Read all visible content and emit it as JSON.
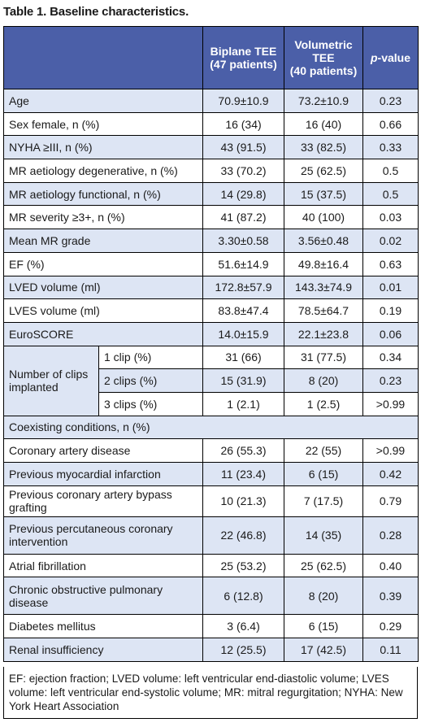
{
  "title": "Table 1. Baseline characteristics.",
  "headers": {
    "col1": "Biplane TEE\n(47 patients)",
    "col2": "Volumetric\nTEE\n(40 patients)",
    "pvalue_prefix": "p",
    "pvalue_suffix": "-value"
  },
  "rows": [
    {
      "label": "Age",
      "a": "70.9±10.9",
      "b": "73.2±10.9",
      "p": "0.23"
    },
    {
      "label": "Sex female, n (%)",
      "a": "16 (34)",
      "b": "16 (40)",
      "p": "0.66"
    },
    {
      "label": "NYHA ≥III, n (%)",
      "a": "43 (91.5)",
      "b": "33 (82.5)",
      "p": "0.33"
    },
    {
      "label": "MR aetiology degenerative, n (%)",
      "a": "33 (70.2)",
      "b": "25 (62.5)",
      "p": "0.5"
    },
    {
      "label": "MR aetiology functional, n (%)",
      "a": "14 (29.8)",
      "b": "15 (37.5)",
      "p": "0.5"
    },
    {
      "label": "MR severity ≥3+, n (%)",
      "a": "41 (87.2)",
      "b": "40 (100)",
      "p": "0.03"
    },
    {
      "label": "Mean MR grade",
      "a": "3.30±0.58",
      "b": "3.56±0.48",
      "p": "0.02"
    },
    {
      "label": "EF (%)",
      "a": "51.6±14.9",
      "b": "49.8±16.4",
      "p": "0.63"
    },
    {
      "label": "LVED volume (ml)",
      "a": "172.8±57.9",
      "b": "143.3±74.9",
      "p": "0.01"
    },
    {
      "label": "LVES volume (ml)",
      "a": "83.8±47.4",
      "b": "78.5±64.7",
      "p": "0.19"
    },
    {
      "label": "EuroSCORE",
      "a": "14.0±15.9",
      "b": "22.1±23.8",
      "p": "0.06"
    }
  ],
  "clips": {
    "group_label": "Number of clips implanted",
    "rows": [
      {
        "label": "1 clip (%)",
        "a": "31 (66)",
        "b": "31 (77.5)",
        "p": "0.34"
      },
      {
        "label": "2 clips (%)",
        "a": "15 (31.9)",
        "b": "8 (20)",
        "p": "0.23"
      },
      {
        "label": "3 clips (%)",
        "a": "1 (2.1)",
        "b": "1 (2.5)",
        "p": ">0.99"
      }
    ]
  },
  "coexisting_header": "Coexisting conditions, n (%)",
  "conditions": [
    {
      "label": "Coronary artery disease",
      "a": "26 (55.3)",
      "b": "22 (55)",
      "p": ">0.99"
    },
    {
      "label": "Previous myocardial infarction",
      "a": "11 (23.4)",
      "b": "6 (15)",
      "p": "0.42"
    },
    {
      "label": "Previous coronary artery bypass grafting",
      "a": "10 (21.3)",
      "b": "7 (17.5)",
      "p": "0.79"
    },
    {
      "label": "Previous percutaneous coronary intervention",
      "a": "22 (46.8)",
      "b": "14 (35)",
      "p": "0.28"
    },
    {
      "label": "Atrial fibrillation",
      "a": "25 (53.2)",
      "b": "25 (62.5)",
      "p": "0.40"
    },
    {
      "label": "Chronic obstructive pulmonary disease",
      "a": "6 (12.8)",
      "b": "8 (20)",
      "p": "0.39"
    },
    {
      "label": "Diabetes mellitus",
      "a": "3 (6.4)",
      "b": "6 (15)",
      "p": "0.29"
    },
    {
      "label": "Renal insufficiency",
      "a": "12 (25.5)",
      "b": "17 (42.5)",
      "p": "0.11"
    }
  ],
  "footnote": "EF: ejection fraction; LVED volume: left ventricular end-diastolic volume; LVES volume: left ventricular end-systolic volume; MR: mitral regurgitation; NYHA: New York Heart Association",
  "colors": {
    "header_bg": "#4b5fa8",
    "stripe": "#dde5f4"
  }
}
